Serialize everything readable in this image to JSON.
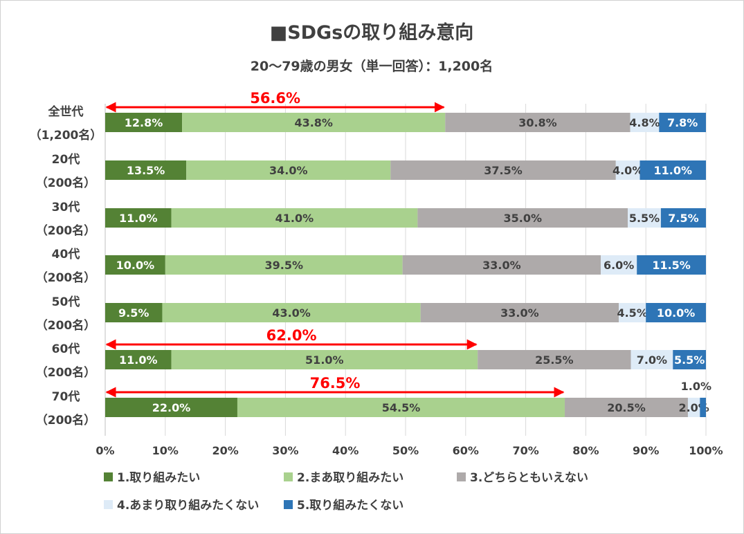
{
  "chart_data": {
    "type": "bar",
    "stacked": "percent",
    "orientation": "horizontal",
    "title": "■SDGsの取り組み意向",
    "subtitle": "20～79歳の男女（単一回答）：1,200名",
    "categories": [
      [
        "全世代",
        "（1,200名）"
      ],
      [
        "20代",
        "（200名）"
      ],
      [
        "30代",
        "（200名）"
      ],
      [
        "40代",
        "（200名）"
      ],
      [
        "50代",
        "（200名）"
      ],
      [
        "60代",
        "（200名）"
      ],
      [
        "70代",
        "（200名）"
      ]
    ],
    "series": [
      {
        "name": "1.取り組みたい",
        "color": "#548235",
        "label_color": "#ffffff",
        "values": [
          12.8,
          13.5,
          11.0,
          10.0,
          9.5,
          11.0,
          22.0
        ]
      },
      {
        "name": "2.まあ取り組みたい",
        "color": "#a9d18e",
        "label_color": "#404040",
        "values": [
          43.8,
          34.0,
          41.0,
          39.5,
          43.0,
          51.0,
          54.5
        ]
      },
      {
        "name": "3.どちらともいえない",
        "color": "#aeaaaa",
        "label_color": "#404040",
        "values": [
          30.8,
          37.5,
          35.0,
          33.0,
          33.0,
          25.5,
          20.5
        ]
      },
      {
        "name": "4.あまり取り組みたくない",
        "color": "#deebf7",
        "label_color": "#404040",
        "values": [
          4.8,
          4.0,
          5.5,
          6.0,
          4.5,
          7.0,
          2.0
        ]
      },
      {
        "name": "5.取り組みたくない",
        "color": "#2e75b6",
        "label_color": "#ffffff",
        "values": [
          7.8,
          11.0,
          7.5,
          11.5,
          10.0,
          5.5,
          1.0
        ]
      }
    ],
    "xlim": [
      0,
      100
    ],
    "xticks": [
      "0%",
      "10%",
      "20%",
      "30%",
      "40%",
      "50%",
      "60%",
      "70%",
      "80%",
      "90%",
      "100%"
    ],
    "gridlines": true,
    "legend_position": "bottom",
    "annotations": [
      {
        "row": 0,
        "value": 56.6,
        "label": "56.6%",
        "color": "#ff0000"
      },
      {
        "row": 5,
        "value": 62.0,
        "label": "62.0%",
        "color": "#ff0000"
      },
      {
        "row": 6,
        "value": 76.5,
        "label": "76.5%",
        "color": "#ff0000"
      }
    ]
  }
}
